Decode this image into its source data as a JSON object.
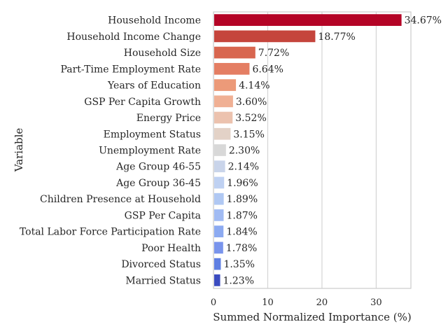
{
  "chart_data": {
    "type": "bar",
    "orientation": "horizontal",
    "xlabel": "Summed Normalized Importance (%)",
    "ylabel": "Variable",
    "xlim": [
      0,
      36.4
    ],
    "xticks": [
      0,
      10,
      20,
      30
    ],
    "grid": true,
    "categories": [
      "Household Income",
      "Household Income Change",
      "Household Size",
      "Part-Time Employment Rate",
      "Years of Education",
      "GSP Per Capita Growth",
      "Energy Price",
      "Employment Status",
      "Unemployment Rate",
      "Age Group 46-55",
      "Age Group 36-45",
      "Children Presence at Household",
      "GSP Per Capita",
      "Total Labor Force Participation Rate",
      "Poor Health",
      "Divorced Status",
      "Married Status"
    ],
    "values": [
      34.67,
      18.77,
      7.72,
      6.64,
      4.14,
      3.6,
      3.52,
      3.15,
      2.3,
      2.14,
      1.96,
      1.89,
      1.87,
      1.84,
      1.78,
      1.35,
      1.23
    ],
    "value_labels": [
      "34.67%",
      "18.77%",
      "7.72%",
      "6.64%",
      "4.14%",
      "3.60%",
      "3.52%",
      "3.15%",
      "2.30%",
      "2.14%",
      "1.96%",
      "1.89%",
      "1.87%",
      "1.84%",
      "1.78%",
      "1.35%",
      "1.23%"
    ],
    "colors": [
      "#b40426",
      "#c5453c",
      "#d8664f",
      "#e47e63",
      "#ec9a79",
      "#f0b094",
      "#ecc2ae",
      "#e3d2c7",
      "#d8d8d8",
      "#c9d4ea",
      "#bfd1f2",
      "#b0c8f3",
      "#a1bbf3",
      "#8caaf1",
      "#7994ec",
      "#5f7fe2",
      "#3b4cc0"
    ]
  }
}
